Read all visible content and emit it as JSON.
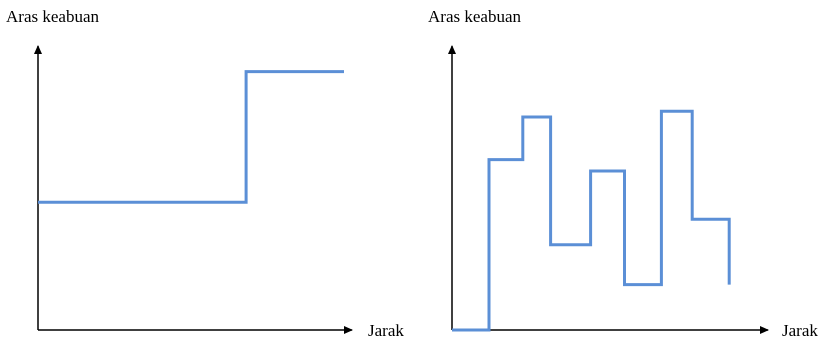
{
  "chart_data": [
    {
      "type": "line",
      "ylabel": "Aras keabuan",
      "xlabel": "Jarak",
      "line_color": "#5b8fd6",
      "axis_color": "#000000",
      "series": [
        {
          "x": [
            0,
            0.68,
            0.68,
            1.0
          ],
          "y": [
            0.45,
            0.45,
            0.91,
            0.91
          ]
        }
      ]
    },
    {
      "type": "line",
      "ylabel": "Aras keabuan",
      "xlabel": "Jarak",
      "line_color": "#5b8fd6",
      "axis_color": "#000000",
      "series": [
        {
          "x": [
            0,
            0.12,
            0.12,
            0.23,
            0.23,
            0.32,
            0.32,
            0.45,
            0.45,
            0.56,
            0.56,
            0.68,
            0.68,
            0.78,
            0.78,
            0.9,
            0.9
          ],
          "y": [
            0,
            0,
            0.6,
            0.6,
            0.75,
            0.75,
            0.3,
            0.3,
            0.56,
            0.56,
            0.16,
            0.16,
            0.77,
            0.77,
            0.39,
            0.39,
            0.16
          ]
        }
      ]
    }
  ]
}
